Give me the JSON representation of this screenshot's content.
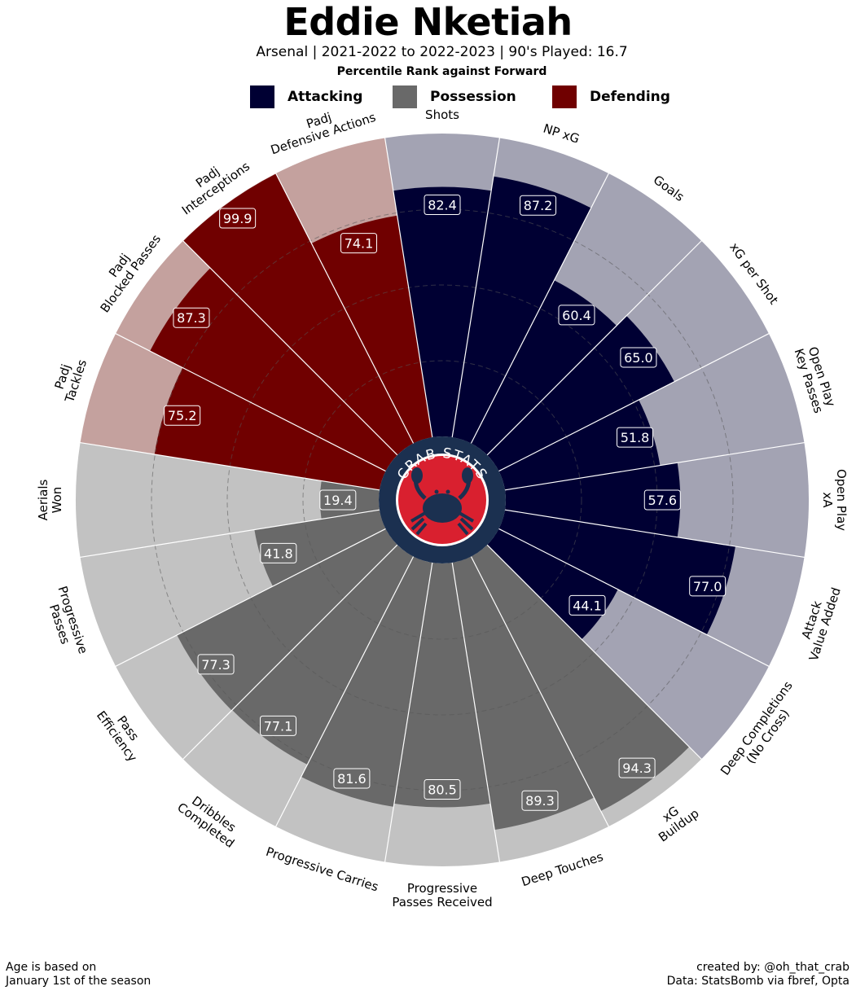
{
  "header": {
    "title": "Eddie Nketiah",
    "subtitle": "Arsenal   | 2021-2022 to 2022-2023 | 90's Played: 16.7",
    "subtitle2": "Percentile Rank against Forward"
  },
  "legend": [
    {
      "label": "Attacking",
      "color": "#000033"
    },
    {
      "label": "Possession",
      "color": "#696969"
    },
    {
      "label": "Defending",
      "color": "#700000"
    }
  ],
  "logo": {
    "text": "CRAB STATS",
    "ring_color": "#1b3050",
    "inner_color": "#d9202f"
  },
  "footer": {
    "left_line1": "Age is based on",
    "left_line2": "January 1st of the season",
    "right_line1": "created by: @oh_that_crab",
    "right_line2": "Data: StatsBomb via fbref, Opta"
  },
  "chart_data": {
    "type": "polar-bar",
    "title": "Eddie Nketiah",
    "rlim": [
      0,
      100
    ],
    "categories": [
      {
        "label": "Shots",
        "value": 82.4,
        "group": "Attacking"
      },
      {
        "label": "NP xG",
        "value": 87.2,
        "group": "Attacking"
      },
      {
        "label": "Goals",
        "value": 60.4,
        "group": "Attacking"
      },
      {
        "label": "xG per Shot",
        "value": 65.0,
        "group": "Attacking"
      },
      {
        "label": "Open Play\nKey Passes",
        "value": 51.8,
        "group": "Attacking"
      },
      {
        "label": "Open Play\nxA",
        "value": 57.6,
        "group": "Attacking"
      },
      {
        "label": "Attack\nValue Added",
        "value": 77.0,
        "group": "Attacking"
      },
      {
        "label": "Deep Completions\n(No Cross)",
        "value": 44.1,
        "group": "Attacking"
      },
      {
        "label": "xG\nBuildup",
        "value": 94.3,
        "group": "Possession"
      },
      {
        "label": "Deep Touches",
        "value": 89.3,
        "group": "Possession"
      },
      {
        "label": "Progressive\nPasses Received",
        "value": 80.5,
        "group": "Possession"
      },
      {
        "label": "Progressive Carries",
        "value": 81.6,
        "group": "Possession"
      },
      {
        "label": "Dribbles\nCompleted",
        "value": 77.1,
        "group": "Possession"
      },
      {
        "label": "Pass\nEfficiency",
        "value": 77.3,
        "group": "Possession"
      },
      {
        "label": "Progressive\nPasses",
        "value": 41.8,
        "group": "Possession"
      },
      {
        "label": "Aerials\nWon",
        "value": 19.4,
        "group": "Possession"
      },
      {
        "label": "Padj\nTackles",
        "value": 75.2,
        "group": "Defending"
      },
      {
        "label": "Padj\nBlocked Passes",
        "value": 87.3,
        "group": "Defending"
      },
      {
        "label": "Padj\nInterceptions",
        "value": 99.9,
        "group": "Defending"
      },
      {
        "label": "Padj\nDefensive Actions",
        "value": 74.1,
        "group": "Defending"
      }
    ],
    "group_colors": {
      "Attacking": "#000033",
      "Possession": "#696969",
      "Defending": "#700000"
    },
    "group_bg_colors": {
      "Attacking": "#a3a3b3",
      "Possession": "#c2c2c2",
      "Defending": "#c4a19e"
    }
  }
}
